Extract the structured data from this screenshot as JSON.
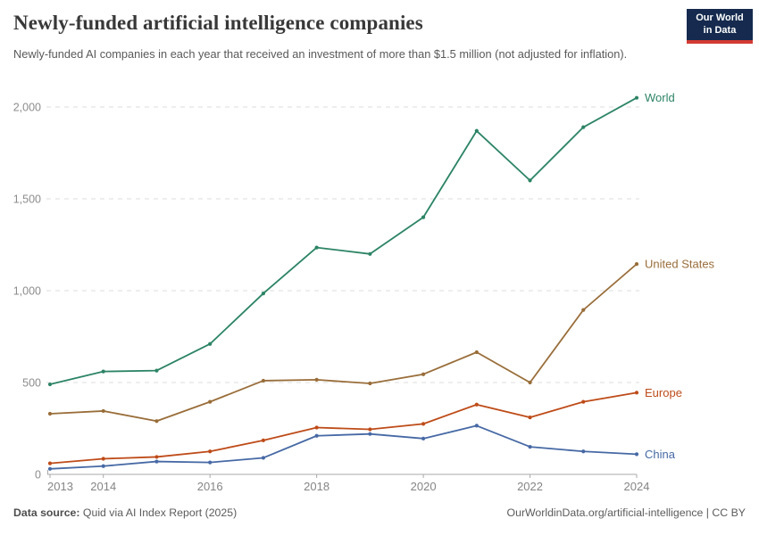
{
  "header": {
    "title": "Newly-funded artificial intelligence companies",
    "subtitle": "Newly-funded AI companies in each year that received an investment of more than $1.5 million (not adjusted for inflation).",
    "logo": {
      "line1": "Our World",
      "line2": "in Data",
      "bg_color": "#152A4E",
      "accent_color": "#D23B33"
    }
  },
  "footer": {
    "source_label": "Data source:",
    "source_value": " Quid via AI Index Report (2025)",
    "credit": "OurWorldinData.org/artificial-intelligence | CC BY"
  },
  "chart_data": {
    "type": "line",
    "title": "Newly-funded artificial intelligence companies",
    "xlabel": "",
    "ylabel": "",
    "x": [
      2013,
      2014,
      2015,
      2016,
      2017,
      2018,
      2019,
      2020,
      2021,
      2022,
      2023,
      2024
    ],
    "series": [
      {
        "name": "World",
        "color": "#2C8465",
        "values": [
          490,
          560,
          565,
          710,
          985,
          1235,
          1200,
          1400,
          1870,
          1600,
          1890,
          2050
        ]
      },
      {
        "name": "United States",
        "color": "#996D39",
        "values": [
          330,
          345,
          290,
          395,
          510,
          515,
          495,
          545,
          665,
          500,
          895,
          1145
        ]
      },
      {
        "name": "Europe",
        "color": "#BE4B18",
        "values": [
          60,
          85,
          95,
          125,
          185,
          255,
          245,
          275,
          380,
          310,
          395,
          445
        ]
      },
      {
        "name": "China",
        "color": "#4669A5",
        "values": [
          30,
          45,
          70,
          65,
          90,
          210,
          220,
          195,
          265,
          150,
          125,
          110
        ]
      }
    ],
    "yticks": [
      {
        "value": 0,
        "label": "0"
      },
      {
        "value": 500,
        "label": "500"
      },
      {
        "value": 1000,
        "label": "1,000"
      },
      {
        "value": 1500,
        "label": "1,500"
      },
      {
        "value": 2000,
        "label": "2,000"
      }
    ],
    "xticks": [
      2013,
      2014,
      2016,
      2018,
      2020,
      2022,
      2024
    ],
    "ylim": [
      0,
      2000
    ],
    "grid": "horizontal-dashed",
    "legend": "line-end-labels"
  }
}
